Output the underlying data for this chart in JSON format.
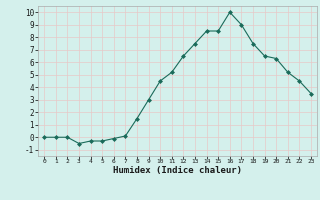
{
  "x": [
    0,
    1,
    2,
    3,
    4,
    5,
    6,
    7,
    8,
    9,
    10,
    11,
    12,
    13,
    14,
    15,
    16,
    17,
    18,
    19,
    20,
    21,
    22,
    23
  ],
  "y": [
    0.0,
    0.0,
    0.0,
    -0.5,
    -0.3,
    -0.3,
    -0.1,
    0.1,
    1.5,
    3.0,
    4.5,
    5.2,
    6.5,
    7.5,
    8.5,
    8.5,
    10.0,
    9.0,
    7.5,
    6.5,
    6.3,
    5.2,
    4.5,
    3.5
  ],
  "xlabel": "Humidex (Indice chaleur)",
  "line_color": "#1a6b5a",
  "marker": "D",
  "marker_size": 2.0,
  "background_color": "#d4f0ec",
  "grid_color_major": "#c8e6e2",
  "grid_color_minor": "#ddf4f0",
  "xlim": [
    -0.5,
    23.5
  ],
  "ylim": [
    -1.5,
    10.5
  ],
  "xticks": [
    0,
    1,
    2,
    3,
    4,
    5,
    6,
    7,
    8,
    9,
    10,
    11,
    12,
    13,
    14,
    15,
    16,
    17,
    18,
    19,
    20,
    21,
    22,
    23
  ],
  "yticks": [
    -1,
    0,
    1,
    2,
    3,
    4,
    5,
    6,
    7,
    8,
    9,
    10
  ]
}
